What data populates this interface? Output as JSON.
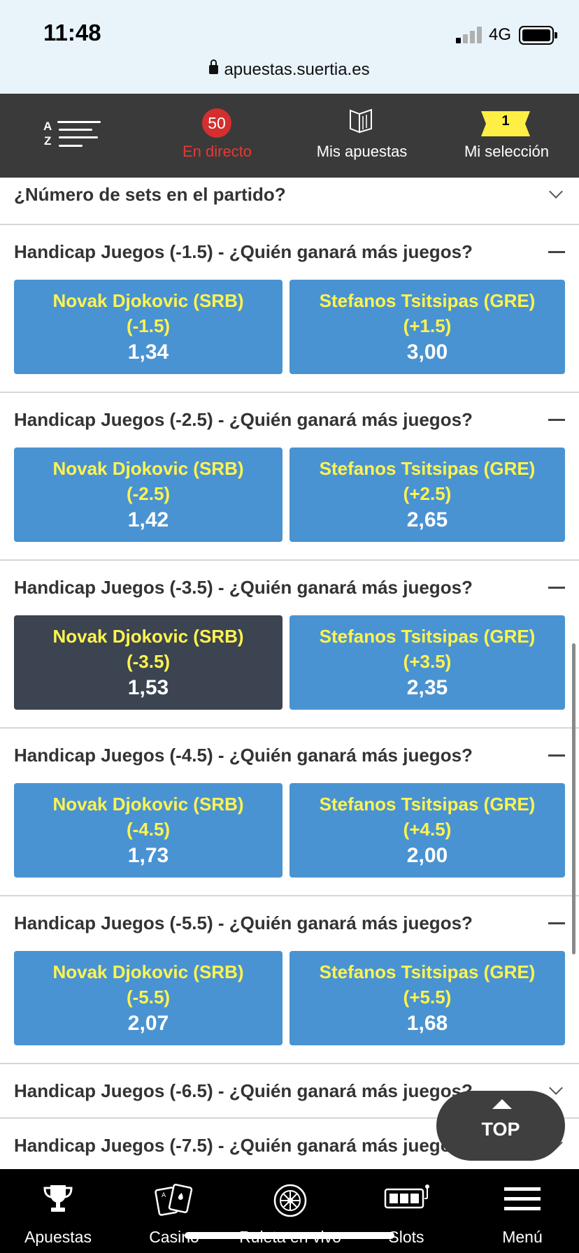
{
  "status": {
    "time": "11:48",
    "network": "4G"
  },
  "browser": {
    "url": "apuestas.suertia.es"
  },
  "topnav": {
    "az_label": "A Z",
    "live_count": "50",
    "live_label": "En directo",
    "bets_label": "Mis apuestas",
    "selection_count": "1",
    "selection_label": "Mi selección"
  },
  "markets": [
    {
      "title": "¿Número de sets en el partido?",
      "state": "collapsed"
    },
    {
      "title": "Handicap Juegos (-1.5) - ¿Quién ganará más juegos?",
      "state": "expanded",
      "options": [
        {
          "name": "Novak Djokovic (SRB) (-1.5)",
          "price": "1,34",
          "selected": false
        },
        {
          "name": "Stefanos Tsitsipas (GRE) (+1.5)",
          "price": "3,00",
          "selected": false
        }
      ]
    },
    {
      "title": "Handicap Juegos (-2.5) - ¿Quién ganará más juegos?",
      "state": "expanded",
      "options": [
        {
          "name": "Novak Djokovic (SRB) (-2.5)",
          "price": "1,42",
          "selected": false
        },
        {
          "name": "Stefanos Tsitsipas (GRE) (+2.5)",
          "price": "2,65",
          "selected": false
        }
      ]
    },
    {
      "title": "Handicap Juegos (-3.5) - ¿Quién ganará más juegos?",
      "state": "expanded",
      "options": [
        {
          "name": "Novak Djokovic (SRB) (-3.5)",
          "price": "1,53",
          "selected": true
        },
        {
          "name": "Stefanos Tsitsipas (GRE) (+3.5)",
          "price": "2,35",
          "selected": false
        }
      ]
    },
    {
      "title": "Handicap Juegos (-4.5) - ¿Quién ganará más juegos?",
      "state": "expanded",
      "options": [
        {
          "name": "Novak Djokovic (SRB) (-4.5)",
          "price": "1,73",
          "selected": false
        },
        {
          "name": "Stefanos Tsitsipas (GRE) (+4.5)",
          "price": "2,00",
          "selected": false
        }
      ]
    },
    {
      "title": "Handicap Juegos (-5.5) - ¿Quién ganará más juegos?",
      "state": "expanded",
      "options": [
        {
          "name": "Novak Djokovic (SRB) (-5.5)",
          "price": "2,07",
          "selected": false
        },
        {
          "name": "Stefanos Tsitsipas (GRE) (+5.5)",
          "price": "1,68",
          "selected": false
        }
      ]
    },
    {
      "title": "Handicap Juegos (-6.5) - ¿Quién ganará más juegos?",
      "state": "collapsed"
    },
    {
      "title": "Handicap Juegos (-7.5) - ¿Quién ganará más juegos?",
      "state": "collapsed"
    }
  ],
  "top_button": {
    "label": "TOP"
  },
  "bottomnav": {
    "items": [
      {
        "label": "Apuestas",
        "icon": "trophy-icon"
      },
      {
        "label": "Casino",
        "icon": "cards-icon"
      },
      {
        "label": "Ruleta en vivo",
        "icon": "roulette-icon"
      },
      {
        "label": "Slots",
        "icon": "slot-machine-icon"
      },
      {
        "label": "Menú",
        "icon": "hamburger-menu-icon"
      }
    ]
  },
  "colors": {
    "odd_button": "#4a93d2",
    "odd_selected": "#3b4450",
    "odd_name": "#fff44f",
    "topnav_bg": "#3a3a3a",
    "live_red": "#d32f2f",
    "ticket_yellow": "#ffef44"
  }
}
